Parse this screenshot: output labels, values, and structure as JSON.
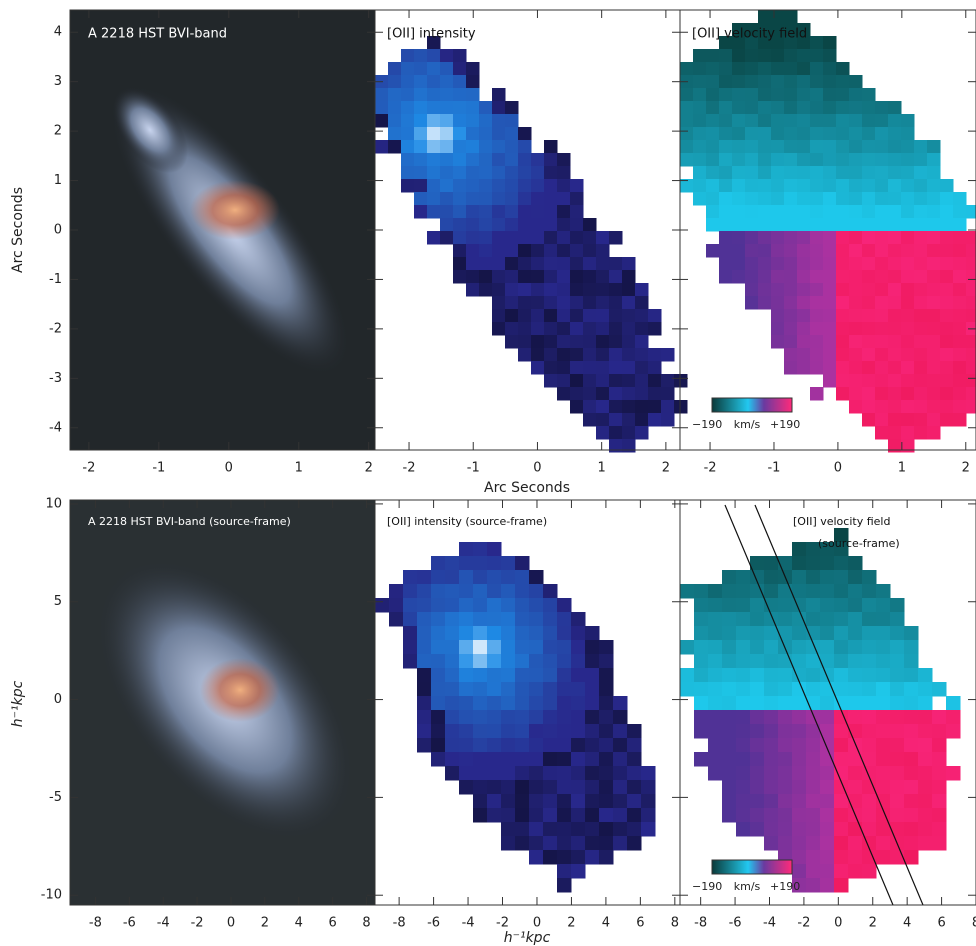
{
  "figure": {
    "panels": [
      {
        "title": "A 2218 HST BVI-band",
        "xlim": [
          -2.27,
          2.09
        ],
        "ylim": [
          -4.45,
          4.45
        ],
        "xticks": [
          -2,
          -1,
          0,
          1,
          2
        ],
        "yticks": [
          -4,
          -3,
          -2,
          -1,
          0,
          1,
          2,
          3,
          4
        ]
      },
      {
        "title": "[OII] intensity",
        "xlim": [
          -2.53,
          2.22
        ],
        "ylim": [
          -4.45,
          4.45
        ],
        "xticks": [
          -2,
          -1,
          0,
          1,
          2
        ],
        "yticks": [
          -4,
          -3,
          -2,
          -1,
          0,
          1,
          2,
          3,
          4
        ]
      },
      {
        "title": "[OII] velocity field",
        "xlim": [
          -2.47,
          2.16
        ],
        "ylim": [
          -4.45,
          4.45
        ],
        "xticks": [
          -2,
          -1,
          0,
          1,
          2
        ],
        "yticks": [
          -4,
          -3,
          -2,
          -1,
          0,
          1,
          2,
          3,
          4
        ]
      },
      {
        "title": "A 2218 HST BVI-band (source-frame)",
        "xlim": [
          -9.5,
          8.5
        ],
        "ylim": [
          -10.5,
          10.2
        ],
        "xticks": [
          -8,
          -6,
          -4,
          -2,
          0,
          2,
          4,
          6,
          8
        ],
        "yticks": [
          -10,
          -5,
          0,
          5,
          10
        ]
      },
      {
        "title": "[OII] intensity (source-frame)",
        "xlim": [
          -9.4,
          8.3
        ],
        "ylim": [
          -10.5,
          10.2
        ],
        "xticks": [
          -8,
          -6,
          -4,
          -2,
          0,
          2,
          4,
          6,
          8
        ],
        "yticks": [
          -10,
          -5,
          0,
          5,
          10
        ]
      },
      {
        "title": "[OII] velocity field",
        "subtitle": "(source-frame)",
        "xlim": [
          -9.2,
          8.0
        ],
        "ylim": [
          -10.5,
          10.2
        ],
        "xticks": [
          -8,
          -6,
          -4,
          -2,
          0,
          2,
          4,
          6,
          8
        ],
        "yticks": [
          -10,
          -5,
          0,
          5,
          10
        ]
      }
    ],
    "top_x_label": "Arc Seconds",
    "top_y_label": "Arc Seconds",
    "bottom_x_label": "h⁻¹kpc",
    "bottom_y_label": "h⁻¹kpc",
    "colorbars": [
      {
        "min_label": "−190",
        "unit": "km/s",
        "max_label": "+190"
      },
      {
        "min_label": "−190",
        "unit": "km/s",
        "max_label": "+190"
      }
    ]
  }
}
